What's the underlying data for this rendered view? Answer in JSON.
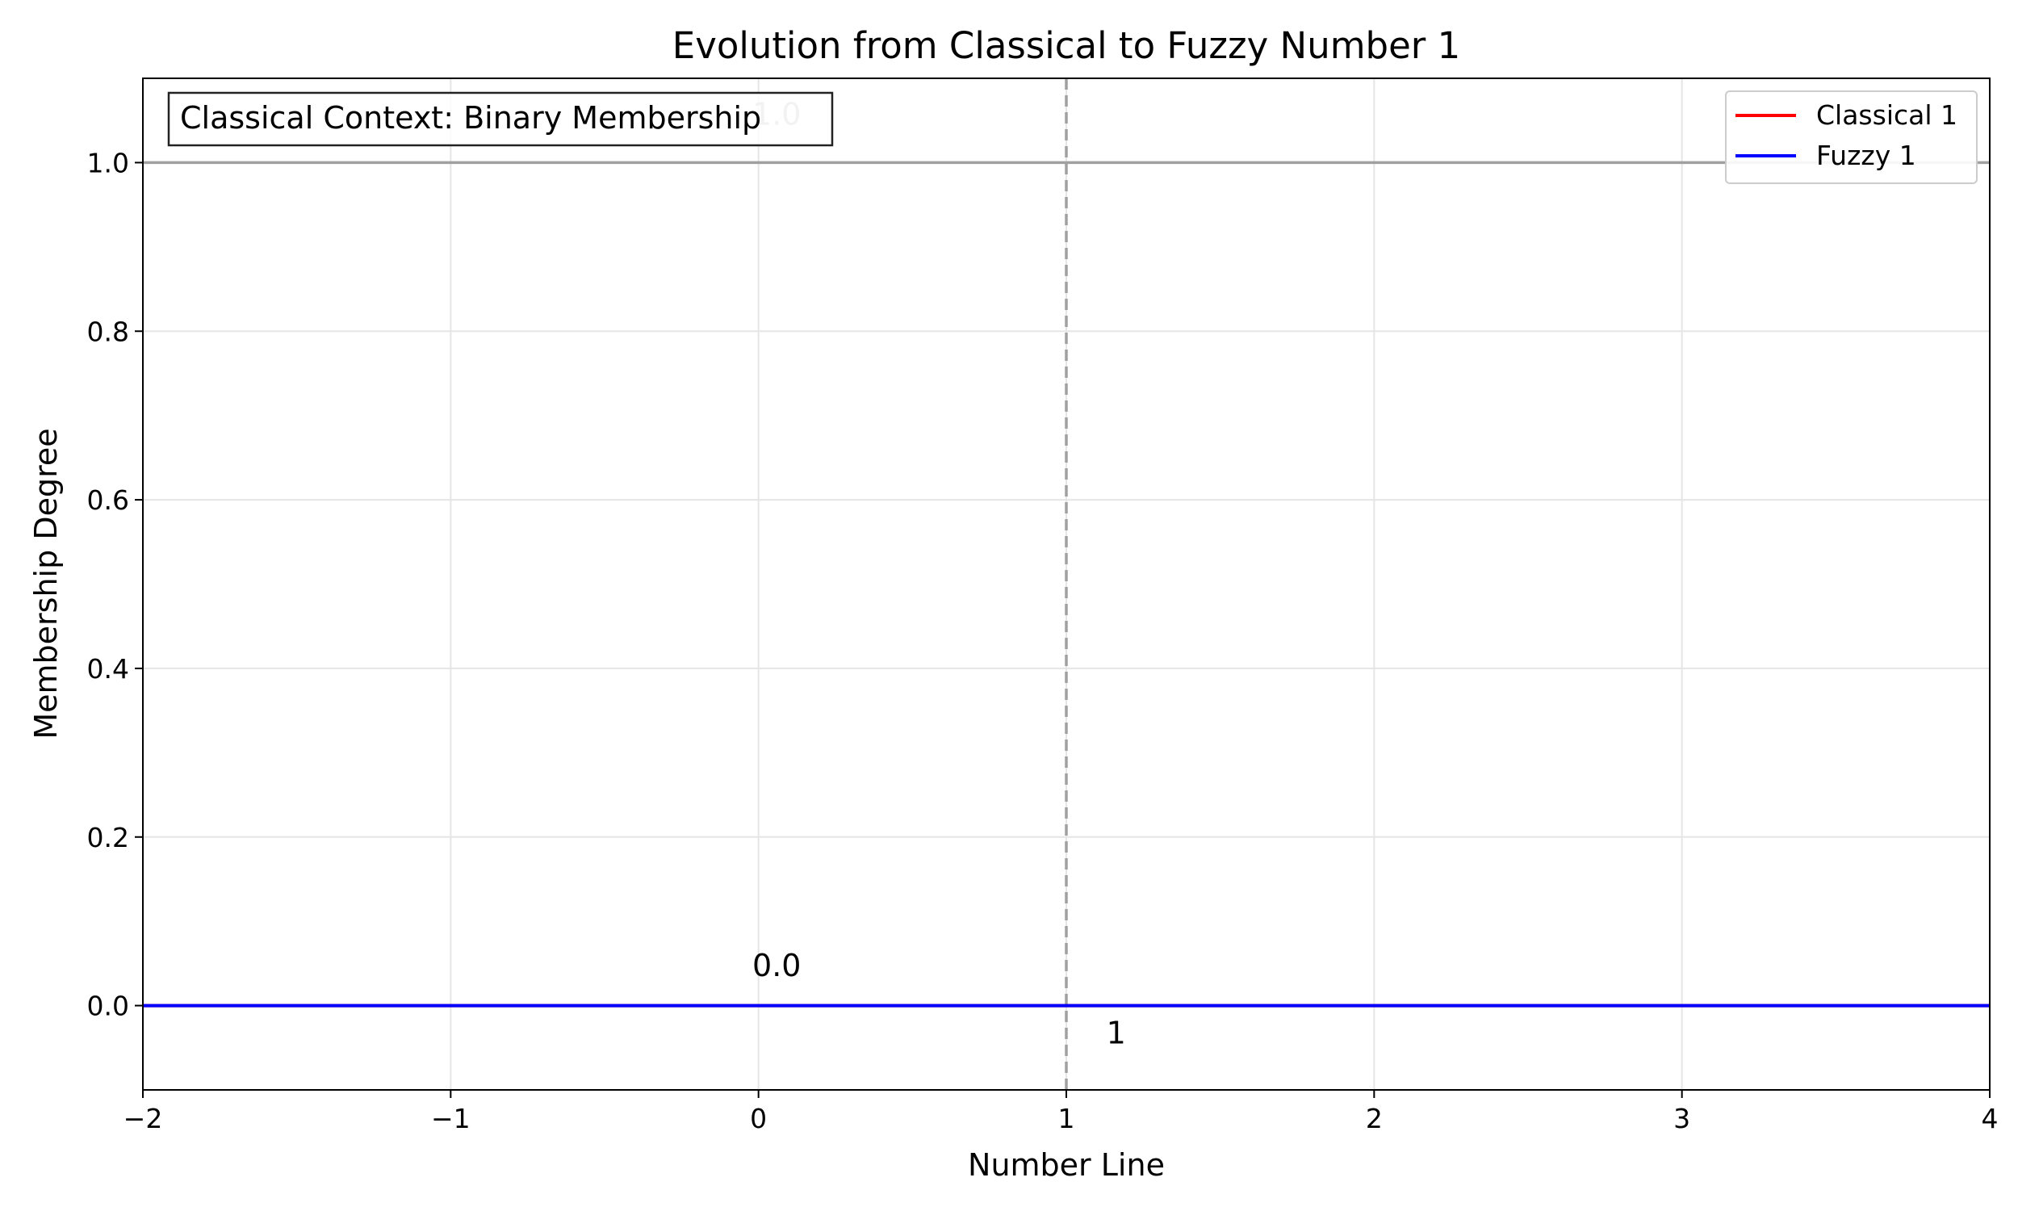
{
  "chart_data": {
    "type": "line",
    "title": "Evolution from Classical to Fuzzy Number 1",
    "xlabel": "Number Line",
    "ylabel": "Membership Degree",
    "xlim": [
      -2,
      4
    ],
    "ylim": [
      -0.1,
      1.1
    ],
    "x_ticks": [
      -2,
      -1,
      0,
      1,
      2,
      3,
      4
    ],
    "x_tick_labels": [
      "−2",
      "−1",
      "0",
      "1",
      "2",
      "3",
      "4"
    ],
    "y_ticks": [
      0.0,
      0.2,
      0.4,
      0.6,
      0.8,
      1.0
    ],
    "y_tick_labels": [
      "0.0",
      "0.2",
      "0.4",
      "0.6",
      "0.8",
      "1.0"
    ],
    "grid": true,
    "legend_position": "top-right",
    "series": [
      {
        "name": "Classical 1",
        "color": "#ff0000",
        "x": [
          -2,
          4
        ],
        "y": [
          0.0,
          0.0
        ]
      },
      {
        "name": "Fuzzy 1",
        "color": "#0000ff",
        "x": [
          -2,
          4
        ],
        "y": [
          0.0,
          0.0
        ]
      }
    ],
    "reference_lines": {
      "horizontal_y": 1.0,
      "horizontal_color": "#a0a0a0",
      "vertical_x": 1.0,
      "vertical_color": "#a0a0a0"
    },
    "annotations": [
      {
        "text": "1.0",
        "x": -0.02,
        "y": 1.045,
        "color": "#bdbdbd"
      },
      {
        "text": "0.0",
        "x": -0.02,
        "y": 0.035,
        "color": "#000000"
      },
      {
        "text": "1",
        "x": 1.13,
        "y": -0.045,
        "color": "#000000"
      }
    ],
    "context_box": "Classical Context: Binary Membership"
  }
}
